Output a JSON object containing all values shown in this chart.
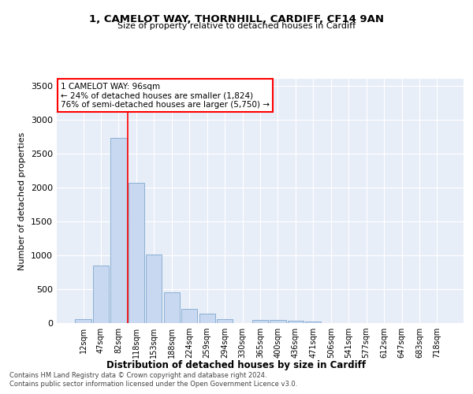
{
  "title1": "1, CAMELOT WAY, THORNHILL, CARDIFF, CF14 9AN",
  "title2": "Size of property relative to detached houses in Cardiff",
  "xlabel": "Distribution of detached houses by size in Cardiff",
  "ylabel": "Number of detached properties",
  "categories": [
    "12sqm",
    "47sqm",
    "82sqm",
    "118sqm",
    "153sqm",
    "188sqm",
    "224sqm",
    "259sqm",
    "294sqm",
    "330sqm",
    "365sqm",
    "400sqm",
    "436sqm",
    "471sqm",
    "506sqm",
    "541sqm",
    "577sqm",
    "612sqm",
    "647sqm",
    "683sqm",
    "718sqm"
  ],
  "values": [
    55,
    850,
    2730,
    2070,
    1005,
    455,
    210,
    145,
    60,
    5,
    50,
    45,
    30,
    20,
    0,
    0,
    0,
    0,
    0,
    0,
    0
  ],
  "bar_color": "#c8d8f0",
  "bar_edge_color": "#7fa8d0",
  "vline_color": "red",
  "annotation_text": "1 CAMELOT WAY: 96sqm\n← 24% of detached houses are smaller (1,824)\n76% of semi-detached houses are larger (5,750) →",
  "annotation_box_color": "white",
  "annotation_box_edge": "red",
  "ylim": [
    0,
    3600
  ],
  "yticks": [
    0,
    500,
    1000,
    1500,
    2000,
    2500,
    3000,
    3500
  ],
  "background_color": "#e8eef8",
  "grid_color": "white",
  "footer1": "Contains HM Land Registry data © Crown copyright and database right 2024.",
  "footer2": "Contains public sector information licensed under the Open Government Licence v3.0."
}
